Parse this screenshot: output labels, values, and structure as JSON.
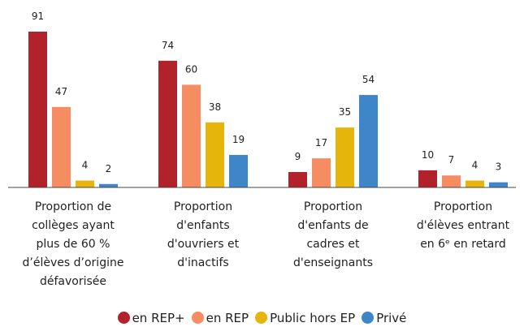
{
  "chart_data": {
    "type": "bar",
    "categories": [
      "Proportion de\ncollèges ayant\nplus de 60 %\nd’élèves d’origine\ndéfavorisée",
      "Proportion\nd'enfants\nd'ouvriers et\nd'inactifs",
      "Proportion\nd'enfants de\ncadres et\nd'enseignants",
      "Proportion\nd'élèves entrant\nen 6ᵉ en retard"
    ],
    "series": [
      {
        "name": "en REP+",
        "color": "#b3222a",
        "values": [
          91,
          74,
          9,
          10
        ]
      },
      {
        "name": "en REP",
        "color": "#f58c62",
        "values": [
          47,
          60,
          17,
          7
        ]
      },
      {
        "name": "Public hors EP",
        "color": "#e5b50c",
        "values": [
          4,
          38,
          35,
          4
        ]
      },
      {
        "name": "Privé",
        "color": "#3f86c8",
        "values": [
          2,
          19,
          54,
          3
        ]
      }
    ]
  }
}
